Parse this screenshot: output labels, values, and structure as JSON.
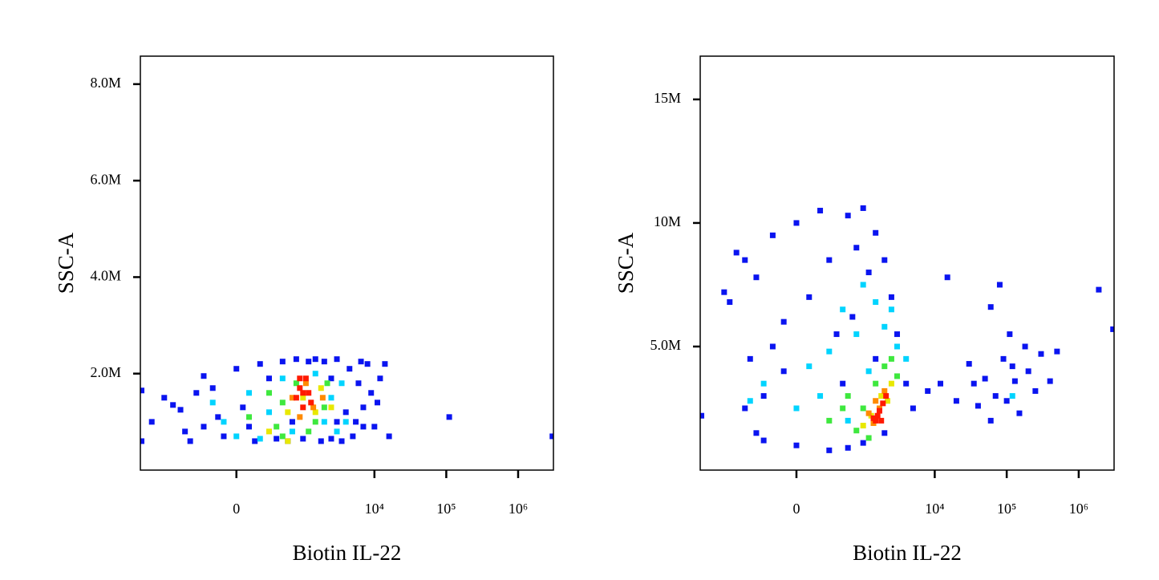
{
  "chart_data": [
    {
      "type": "scatter",
      "x_label": "Biotin IL-22",
      "y_label": "SSC-A",
      "xscale": {
        "type": "asinh",
        "width": 120
      },
      "xlim": [
        -2600,
        3100000
      ],
      "ylim": [
        0,
        8580000
      ],
      "xticks": [
        0,
        {
          "value": 10000,
          "label": "10⁴"
        },
        {
          "value": 100000,
          "label": "10⁵"
        },
        {
          "value": 1000000,
          "label": "10⁶"
        }
      ],
      "yticks": [
        {
          "value": 2000000,
          "label": "2.0M"
        },
        {
          "value": 4000000,
          "label": "4.0M"
        },
        {
          "value": 6000000,
          "label": "6.0M"
        },
        {
          "value": 8000000,
          "label": "8.0M"
        }
      ],
      "series": [
        {
          "color": "#0a14f0",
          "x": [
            -2500,
            -2500,
            -1800,
            -1200,
            -900,
            -700,
            -600,
            -500,
            -300,
            -200,
            -150,
            -100,
            0,
            50,
            100,
            150,
            200,
            300,
            400,
            500,
            600,
            800,
            1000,
            1200,
            1500,
            1800,
            2000,
            2500,
            3000,
            3500,
            4000,
            4500,
            5000,
            6000,
            6500,
            7000,
            8000,
            9000,
            10000,
            12000,
            14000,
            16000,
            11000,
            3000,
            5500,
            -400,
            2500,
            7000,
            110000,
            3000000,
            -300,
            700
          ],
          "y": [
            1650000,
            600000,
            1000000,
            1500000,
            1350000,
            1250000,
            800000,
            600000,
            1950000,
            1700000,
            1100000,
            700000,
            2100000,
            1300000,
            900000,
            600000,
            2200000,
            1900000,
            650000,
            2250000,
            600000,
            2300000,
            650000,
            2250000,
            2300000,
            600000,
            2250000,
            1900000,
            2300000,
            600000,
            1200000,
            2100000,
            700000,
            1800000,
            2250000,
            1300000,
            2200000,
            1600000,
            900000,
            1900000,
            2200000,
            700000,
            1400000,
            1000000,
            1000000,
            1600000,
            650000,
            900000,
            1100000,
            700000,
            900000,
            1000000
          ]
        },
        {
          "color": "#00d4ff",
          "x": [
            -200,
            0,
            100,
            300,
            500,
            700,
            2000,
            2500,
            3000,
            1500,
            -100,
            3500,
            200,
            4000
          ],
          "y": [
            1400000,
            700000,
            1600000,
            1200000,
            1900000,
            800000,
            1000000,
            1500000,
            800000,
            2000000,
            1000000,
            1800000,
            650000,
            1000000
          ]
        },
        {
          "color": "#3ee83e",
          "x": [
            100,
            300,
            500,
            500,
            800,
            1200,
            2000,
            1500,
            2200,
            400
          ],
          "y": [
            1100000,
            1600000,
            700000,
            1400000,
            1800000,
            800000,
            1300000,
            1000000,
            1800000,
            900000
          ]
        },
        {
          "color": "#e8e800",
          "x": [
            300,
            600,
            1000,
            1800,
            600,
            1500,
            2500
          ],
          "y": [
            800000,
            1200000,
            1500000,
            1700000,
            600000,
            1200000,
            1300000
          ]
        },
        {
          "color": "#ff8a00",
          "x": [
            700,
            1100,
            1400,
            900,
            1900
          ],
          "y": [
            1500000,
            1800000,
            1300000,
            1100000,
            1500000
          ]
        },
        {
          "color": "#ff1a00",
          "x": [
            800,
            900,
            1000,
            1100,
            1200,
            1000,
            1300,
            900
          ],
          "y": [
            1500000,
            1700000,
            1300000,
            1900000,
            1600000,
            1600000,
            1400000,
            1900000
          ]
        }
      ]
    },
    {
      "type": "scatter",
      "x_label": "Biotin IL-22",
      "y_label": "SSC-A",
      "xscale": {
        "type": "asinh",
        "width": 120
      },
      "xlim": [
        -2600,
        3100000
      ],
      "ylim": [
        0,
        16750000
      ],
      "xticks": [
        0,
        {
          "value": 10000,
          "label": "10⁴"
        },
        {
          "value": 100000,
          "label": "10⁵"
        },
        {
          "value": 1000000,
          "label": "10⁶"
        }
      ],
      "yticks": [
        {
          "value": 5000000,
          "label": "5.0M"
        },
        {
          "value": 10000000,
          "label": "10M"
        },
        {
          "value": 15000000,
          "label": "15M"
        }
      ],
      "series": [
        {
          "color": "#0a14f0",
          "x": [
            -2500,
            -1200,
            -1000,
            -800,
            -600,
            -500,
            -400,
            -300,
            -200,
            -100,
            0,
            100,
            200,
            300,
            400,
            600,
            800,
            1000,
            1200,
            1500,
            2000,
            2500,
            3000,
            -300,
            0,
            300,
            600,
            -600,
            -400,
            1000,
            2000,
            4000,
            5000,
            8000,
            12000,
            15000,
            20000,
            30000,
            40000,
            50000,
            60000,
            80000,
            90000,
            100000,
            110000,
            130000,
            150000,
            180000,
            200000,
            250000,
            300000,
            400000,
            500000,
            35000,
            70000,
            120000,
            1900000,
            3000000,
            60000,
            1500,
            500,
            -200,
            700,
            -100
          ],
          "y": [
            2200000,
            7200000,
            6800000,
            8800000,
            8500000,
            4500000,
            7800000,
            3000000,
            9500000,
            6000000,
            10000000,
            7000000,
            10500000,
            8500000,
            5500000,
            10300000,
            9000000,
            10600000,
            8000000,
            9600000,
            8500000,
            7000000,
            5500000,
            1200000,
            1000000,
            800000,
            900000,
            2500000,
            1500000,
            1100000,
            1500000,
            3500000,
            2500000,
            3200000,
            3500000,
            7800000,
            2800000,
            4300000,
            2600000,
            3700000,
            2000000,
            7500000,
            4500000,
            2800000,
            5500000,
            3600000,
            2300000,
            5000000,
            4000000,
            3200000,
            4700000,
            3600000,
            4800000,
            3500000,
            3000000,
            4200000,
            7300000,
            5700000,
            6600000,
            4500000,
            3500000,
            5000000,
            6200000,
            4000000
          ]
        },
        {
          "color": "#00d4ff",
          "x": [
            -300,
            0,
            300,
            500,
            800,
            1000,
            1500,
            2500,
            3000,
            200,
            600,
            -500,
            2000,
            4000,
            100,
            1200,
            120000
          ],
          "y": [
            3500000,
            2500000,
            4800000,
            6500000,
            5500000,
            7500000,
            6800000,
            6500000,
            5000000,
            3000000,
            2000000,
            2800000,
            5800000,
            4500000,
            4200000,
            4000000,
            3000000
          ]
        },
        {
          "color": "#3ee83e",
          "x": [
            300,
            600,
            800,
            1000,
            2000,
            3000,
            500,
            1200,
            2500,
            1500
          ],
          "y": [
            2000000,
            3000000,
            1600000,
            2500000,
            4200000,
            3800000,
            2500000,
            1300000,
            4500000,
            3500000
          ]
        },
        {
          "color": "#e8e800",
          "x": [
            1000,
            1300,
            2500,
            1800,
            2200
          ],
          "y": [
            1800000,
            2200000,
            3500000,
            3000000,
            2800000
          ]
        },
        {
          "color": "#ff8a00",
          "x": [
            1400,
            1700,
            2000,
            1500,
            1200
          ],
          "y": [
            1900000,
            2500000,
            3200000,
            2800000,
            2300000
          ]
        },
        {
          "color": "#ff1a00",
          "x": [
            1500,
            1700,
            1900,
            2100,
            1600,
            1400,
            1800
          ],
          "y": [
            2000000,
            2400000,
            2700000,
            3000000,
            2200000,
            2100000,
            2000000
          ]
        }
      ]
    }
  ]
}
